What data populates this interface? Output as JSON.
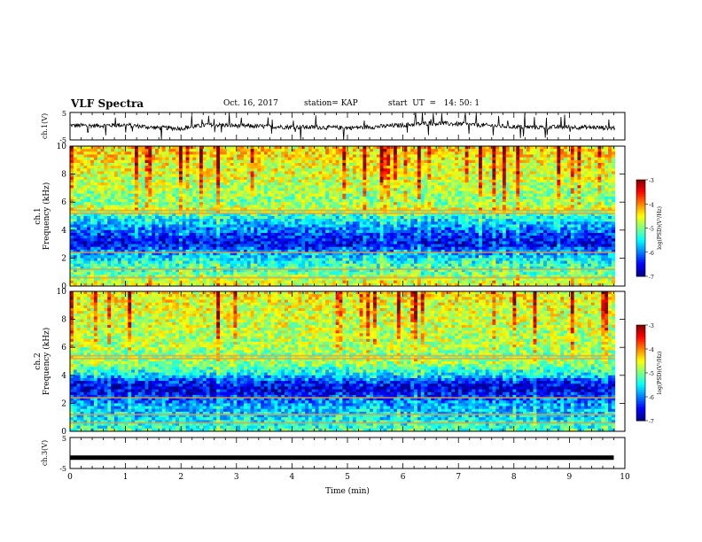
{
  "header": {
    "title": "VLF Spectra",
    "date": "Oct. 16, 2017",
    "station": "station= KAP",
    "start_ut": "start  UT  =   14: 50: 1"
  },
  "chart_data": [
    {
      "type": "line",
      "name": "ch1-waveform",
      "ylabel": "ch.1(V)",
      "ylim": [
        -5,
        5
      ],
      "yticks": [
        "5",
        "-5"
      ],
      "x": [
        0,
        0.5,
        1,
        1.5,
        2,
        2.5,
        3,
        3.5,
        4,
        4.5,
        5,
        5.5,
        6,
        6.5,
        7,
        7.5,
        8,
        8.5,
        9,
        9.5,
        9.8
      ],
      "values": [
        0.3,
        0.2,
        0.5,
        -0.5,
        -0.8,
        0.6,
        0.2,
        -0.1,
        -0.3,
        -0.4,
        -0.6,
        -0.2,
        0.4,
        1.1,
        0.8,
        0.3,
        -0.2,
        -0.4,
        -0.3,
        -0.5,
        -0.6
      ]
    },
    {
      "type": "heatmap",
      "name": "ch1-spectrogram",
      "ylabel_top": "ch.1",
      "ylabel": "Frequency (kHz)",
      "ylim": [
        0,
        10
      ],
      "yticks": [
        "0",
        "2",
        "4",
        "6",
        "8",
        "10"
      ],
      "freq_profile_kHz": [
        0,
        0.5,
        1,
        1.5,
        2,
        2.5,
        3,
        3.5,
        4,
        4.5,
        5,
        5.5,
        6,
        6.5,
        7,
        7.5,
        8,
        8.5,
        9,
        9.5,
        10
      ],
      "log_psd_profile": [
        -4.5,
        -4.8,
        -5.2,
        -5.3,
        -5.6,
        -6.0,
        -6.6,
        -6.4,
        -6.0,
        -5.7,
        -5.4,
        -4.6,
        -5.0,
        -4.9,
        -4.8,
        -4.7,
        -4.6,
        -4.6,
        -4.5,
        -4.4,
        -4.4
      ]
    },
    {
      "type": "heatmap",
      "name": "ch2-spectrogram",
      "ylabel_top": "ch.2",
      "ylabel": "Frequency (kHz)",
      "ylim": [
        0,
        10
      ],
      "yticks": [
        "0",
        "2",
        "4",
        "6",
        "8",
        "10"
      ],
      "freq_profile_kHz": [
        0,
        0.5,
        1,
        1.5,
        2,
        2.5,
        3,
        3.5,
        4,
        4.5,
        5,
        5.5,
        6,
        6.5,
        7,
        7.5,
        8,
        8.5,
        9,
        9.5,
        10
      ],
      "log_psd_profile": [
        -5.3,
        -5.4,
        -5.6,
        -5.7,
        -5.9,
        -6.3,
        -6.7,
        -6.4,
        -5.6,
        -5.2,
        -4.8,
        -5.0,
        -4.8,
        -4.8,
        -4.8,
        -4.7,
        -4.7,
        -4.6,
        -4.6,
        -4.5,
        -4.5
      ]
    },
    {
      "type": "line",
      "name": "ch3-waveform",
      "ylabel": "ch.3(V)",
      "ylim": [
        -5,
        5
      ],
      "yticks": [
        "5",
        "-5"
      ],
      "x": [
        0,
        9.8
      ],
      "values": [
        -1.5,
        -1.5
      ]
    }
  ],
  "xaxis": {
    "label": "Time (min)",
    "range": [
      0,
      10
    ],
    "ticks": [
      "0",
      "1",
      "2",
      "3",
      "4",
      "5",
      "6",
      "7",
      "8",
      "9",
      "10"
    ]
  },
  "colorbar": {
    "label": "log(PSD)(V²/Hz)",
    "range": [
      -7,
      -3
    ],
    "ticks": [
      "-3",
      "-4",
      "-5",
      "-6",
      "-7"
    ],
    "colormap": [
      "#000080",
      "#0000ff",
      "#0080ff",
      "#00ffff",
      "#80ff80",
      "#ffff00",
      "#ff8000",
      "#ff0000",
      "#800000"
    ]
  }
}
